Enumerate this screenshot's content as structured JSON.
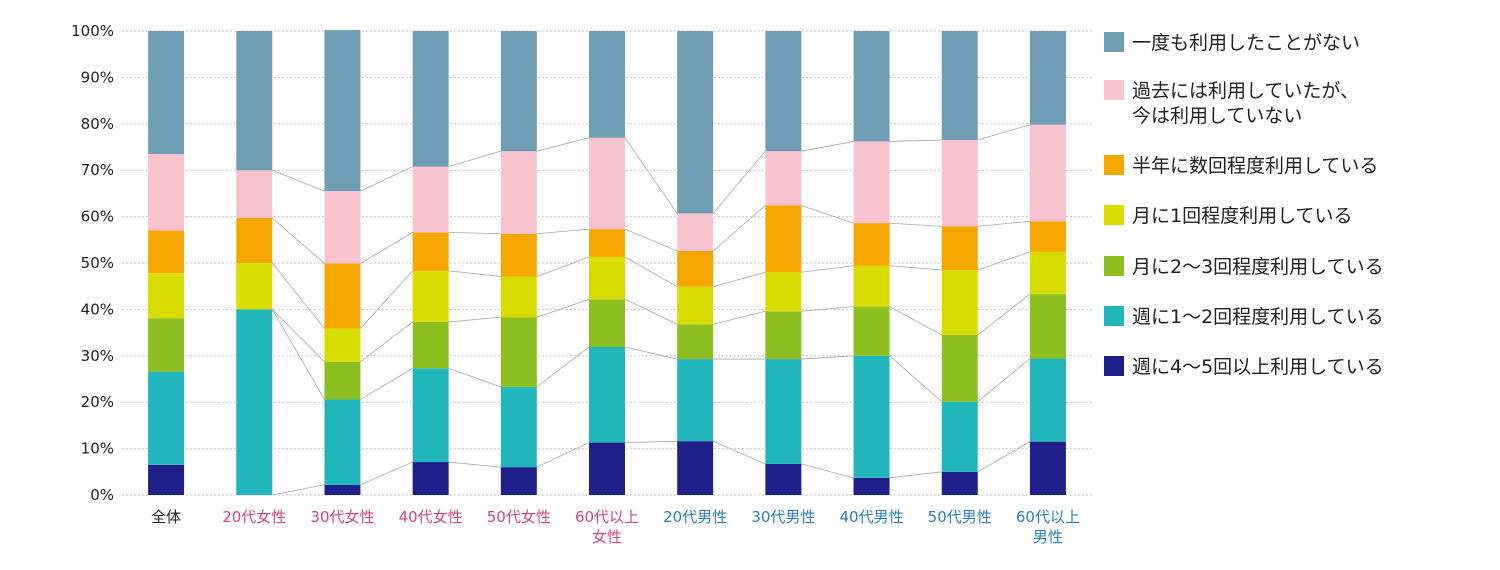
{
  "chart_data": {
    "type": "bar",
    "stacked": true,
    "ylim": [
      0,
      100
    ],
    "yticks": [
      "0%",
      "10%",
      "20%",
      "30%",
      "40%",
      "50%",
      "60%",
      "70%",
      "80%",
      "90%",
      "100%"
    ],
    "grid": true,
    "legend_position": "right",
    "categories": [
      {
        "lines": [
          "全体"
        ],
        "color": "#222222"
      },
      {
        "lines": [
          "20代女性"
        ],
        "color": "#d6457c"
      },
      {
        "lines": [
          "30代女性"
        ],
        "color": "#d6457c"
      },
      {
        "lines": [
          "40代女性"
        ],
        "color": "#d6457c"
      },
      {
        "lines": [
          "50代女性"
        ],
        "color": "#d6457c"
      },
      {
        "lines": [
          "60代以上",
          "女性"
        ],
        "color": "#d6457c"
      },
      {
        "lines": [
          "20代男性"
        ],
        "color": "#2a7fc2"
      },
      {
        "lines": [
          "30代男性"
        ],
        "color": "#2a7fc2"
      },
      {
        "lines": [
          "40代男性"
        ],
        "color": "#2a7fc2"
      },
      {
        "lines": [
          "50代男性"
        ],
        "color": "#2a7fc2"
      },
      {
        "lines": [
          "60代以上",
          "男性"
        ],
        "color": "#2a7fc2"
      }
    ],
    "series": [
      {
        "name": "週に4〜5回以上利用している",
        "color": "#1f1f8a",
        "values": [
          6.5,
          0,
          2.2,
          7.1,
          6.0,
          11.3,
          11.6,
          6.7,
          3.7,
          5.0,
          11.5
        ]
      },
      {
        "name": "週に1〜2回程度利用している",
        "color": "#20b6bc",
        "values": [
          20.1,
          40.0,
          18.4,
          20.2,
          17.3,
          20.6,
          17.7,
          22.6,
          26.3,
          15.1,
          17.9
        ]
      },
      {
        "name": "月に2〜3回程度利用している",
        "color": "#8dbf21",
        "values": [
          11.5,
          0,
          8.1,
          10.0,
          15.0,
          10.3,
          7.5,
          10.3,
          10.6,
          14.4,
          13.9
        ]
      },
      {
        "name": "月に1回程度利用している",
        "color": "#d9dc00",
        "values": [
          9.7,
          10.0,
          7.2,
          11.0,
          8.8,
          9.1,
          8.1,
          8.4,
          8.8,
          14.0,
          9.1
        ]
      },
      {
        "name": "半年に数回程度利用している",
        "color": "#f5a700",
        "values": [
          9.2,
          9.7,
          14.0,
          8.3,
          9.2,
          6.0,
          7.7,
          14.4,
          9.2,
          9.4,
          6.6
        ]
      },
      {
        "name": "過去には利用していたが、\n今は利用していない",
        "color": "#f6c3cf",
        "values": [
          16.5,
          10.3,
          15.6,
          14.2,
          17.8,
          19.7,
          8.1,
          11.7,
          17.6,
          18.6,
          20.8
        ]
      },
      {
        "name": "一度も利用したことがない",
        "color": "#6f9db3",
        "values": [
          26.5,
          30.0,
          34.7,
          29.2,
          25.9,
          23.0,
          39.3,
          25.9,
          23.8,
          23.5,
          20.2
        ]
      }
    ],
    "legend_order": [
      6,
      5,
      4,
      3,
      2,
      1,
      0
    ]
  }
}
